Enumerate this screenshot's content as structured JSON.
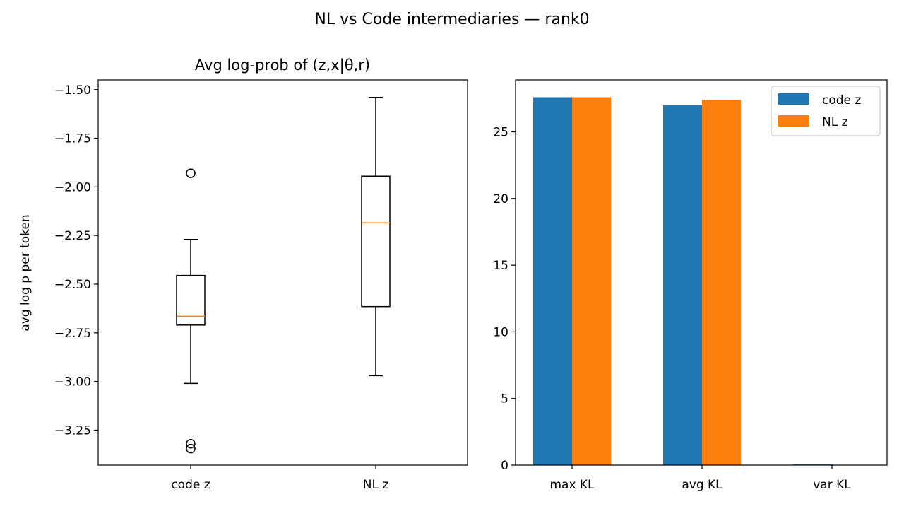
{
  "figure": {
    "title": "NL vs Code intermediaries — rank0"
  },
  "chart_data": [
    {
      "type": "box",
      "title": "Avg log-prob of (z,x|θ,r)",
      "xlabel": "",
      "ylabel": "avg log p per token",
      "ylim": [
        -3.43,
        -1.45
      ],
      "yticks": [
        -1.5,
        -1.75,
        -2.0,
        -2.25,
        -2.5,
        -2.75,
        -3.0,
        -3.25
      ],
      "ytick_labels": [
        "−1.50",
        "−1.75",
        "−2.00",
        "−2.25",
        "−2.50",
        "−2.75",
        "−3.00",
        "−3.25"
      ],
      "categories": [
        "code z",
        "NL z"
      ],
      "boxes": [
        {
          "whisker_low": -3.01,
          "q1": -2.71,
          "median": -2.665,
          "q3": -2.455,
          "whisker_high": -2.27,
          "outliers": [
            -1.93,
            -3.32,
            -3.345
          ]
        },
        {
          "whisker_low": -2.97,
          "q1": -2.615,
          "median": -2.185,
          "q3": -1.945,
          "whisker_high": -1.54,
          "outliers": []
        }
      ],
      "colors": {
        "median": "#ff7f0e",
        "box": "#000000"
      },
      "grid": false
    },
    {
      "type": "bar",
      "title": "",
      "xlabel": "",
      "ylabel": "",
      "ylim": [
        0,
        28.9
      ],
      "yticks": [
        0,
        5,
        10,
        15,
        20,
        25
      ],
      "ytick_labels": [
        "0",
        "5",
        "10",
        "15",
        "20",
        "25"
      ],
      "categories": [
        "max KL",
        "avg KL",
        "var KL"
      ],
      "series": [
        {
          "name": "code z",
          "color": "#1f77b4",
          "values": [
            27.6,
            27.0,
            0.05
          ]
        },
        {
          "name": "NL z",
          "color": "#ff7f0e",
          "values": [
            27.6,
            27.4,
            0.0
          ]
        }
      ],
      "legend": "top-right",
      "grid": false
    }
  ]
}
